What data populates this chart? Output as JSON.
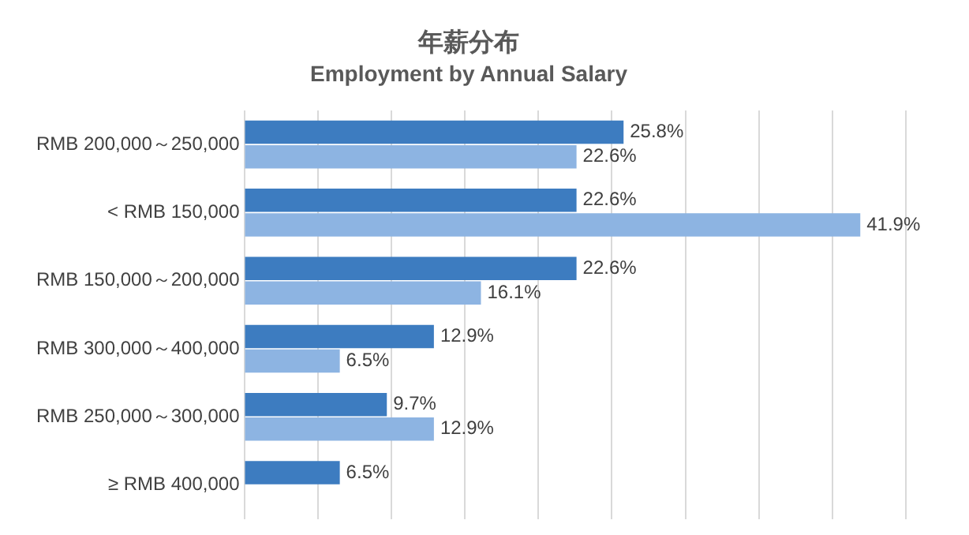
{
  "chart_data": {
    "type": "bar",
    "orientation": "horizontal",
    "title": "年薪分布",
    "subtitle": "Employment by Annual Salary",
    "categories": [
      "RMB 200,000～250,000",
      "< RMB 150,000",
      "RMB 150,000～200,000",
      "RMB 300,000～400,000",
      "RMB 250,000～300,000",
      "≥ RMB 400,000"
    ],
    "series": [
      {
        "color": "#3d7cc0",
        "values": [
          25.8,
          22.6,
          22.6,
          12.9,
          9.7,
          6.5
        ],
        "value_labels": [
          "25.8%",
          "22.6%",
          "22.6%",
          "12.9%",
          "9.7%",
          "6.5%"
        ]
      },
      {
        "color": "#8db4e2",
        "values": [
          22.6,
          41.9,
          16.1,
          6.5,
          12.9,
          null
        ],
        "value_labels": [
          "22.6%",
          "41.9%",
          "16.1%",
          "6.5%",
          "12.9%",
          null
        ]
      }
    ],
    "xlim": [
      0,
      45
    ],
    "xticks": [
      {
        "value": 0,
        "label": null
      },
      {
        "value": 5,
        "label": null
      },
      {
        "value": 10,
        "label": null
      },
      {
        "value": 15,
        "label": null
      },
      {
        "value": 20,
        "label": null
      },
      {
        "value": 25,
        "label": null
      },
      {
        "value": 30,
        "label": null
      },
      {
        "value": 35,
        "label": null
      },
      {
        "value": 40,
        "label": null
      },
      {
        "value": 45,
        "label": null
      }
    ],
    "grid": "x",
    "tick_labels": "y",
    "legend": false
  }
}
